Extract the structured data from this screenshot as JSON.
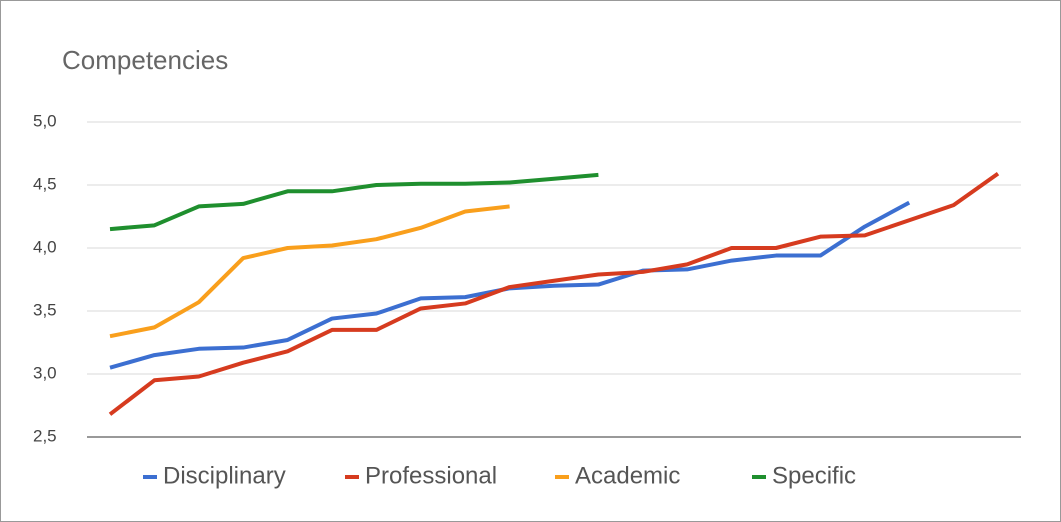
{
  "chart_data": {
    "type": "line",
    "title": "Competencies",
    "categories": [
      null,
      null,
      null,
      null,
      null,
      null,
      null,
      null,
      null,
      null,
      null,
      null,
      null,
      null,
      null,
      null,
      null,
      null,
      null,
      null,
      null
    ],
    "series": [
      {
        "name": "Disciplinary",
        "color": "#3c6fd1",
        "values": [
          3.05,
          3.15,
          3.2,
          3.21,
          3.27,
          3.44,
          3.48,
          3.6,
          3.61,
          3.68,
          3.7,
          3.71,
          3.82,
          3.83,
          3.9,
          3.94,
          3.94,
          4.17,
          4.36,
          null,
          null
        ]
      },
      {
        "name": "Professional",
        "color": "#d63b1f",
        "values": [
          2.68,
          2.95,
          2.98,
          3.09,
          3.18,
          3.35,
          3.35,
          3.52,
          3.56,
          3.69,
          3.74,
          3.79,
          3.81,
          3.87,
          4.0,
          4.0,
          4.09,
          4.1,
          4.22,
          4.34,
          4.59
        ]
      },
      {
        "name": "Academic",
        "color": "#f99f1c",
        "values": [
          3.3,
          3.37,
          3.57,
          3.92,
          4.0,
          4.02,
          4.07,
          4.16,
          4.29,
          4.33,
          null,
          null,
          null,
          null,
          null,
          null,
          null,
          null,
          null,
          null,
          null
        ]
      },
      {
        "name": "Specific",
        "color": "#1f8f2e",
        "values": [
          4.15,
          4.18,
          4.33,
          4.35,
          4.45,
          4.45,
          4.5,
          4.51,
          4.51,
          4.52,
          4.55,
          4.58,
          null,
          null,
          null,
          null,
          null,
          null,
          null,
          null,
          null
        ]
      }
    ],
    "ylim": [
      2.5,
      5.0
    ],
    "yticks": [
      {
        "value": 2.5,
        "label": "2,5"
      },
      {
        "value": 3.0,
        "label": "3,0"
      },
      {
        "value": 3.5,
        "label": "3,5"
      },
      {
        "value": 4.0,
        "label": "4,0"
      },
      {
        "value": 4.5,
        "label": "4,5"
      },
      {
        "value": 5.0,
        "label": "5,0"
      }
    ],
    "grid": true,
    "legend": "bottom"
  }
}
